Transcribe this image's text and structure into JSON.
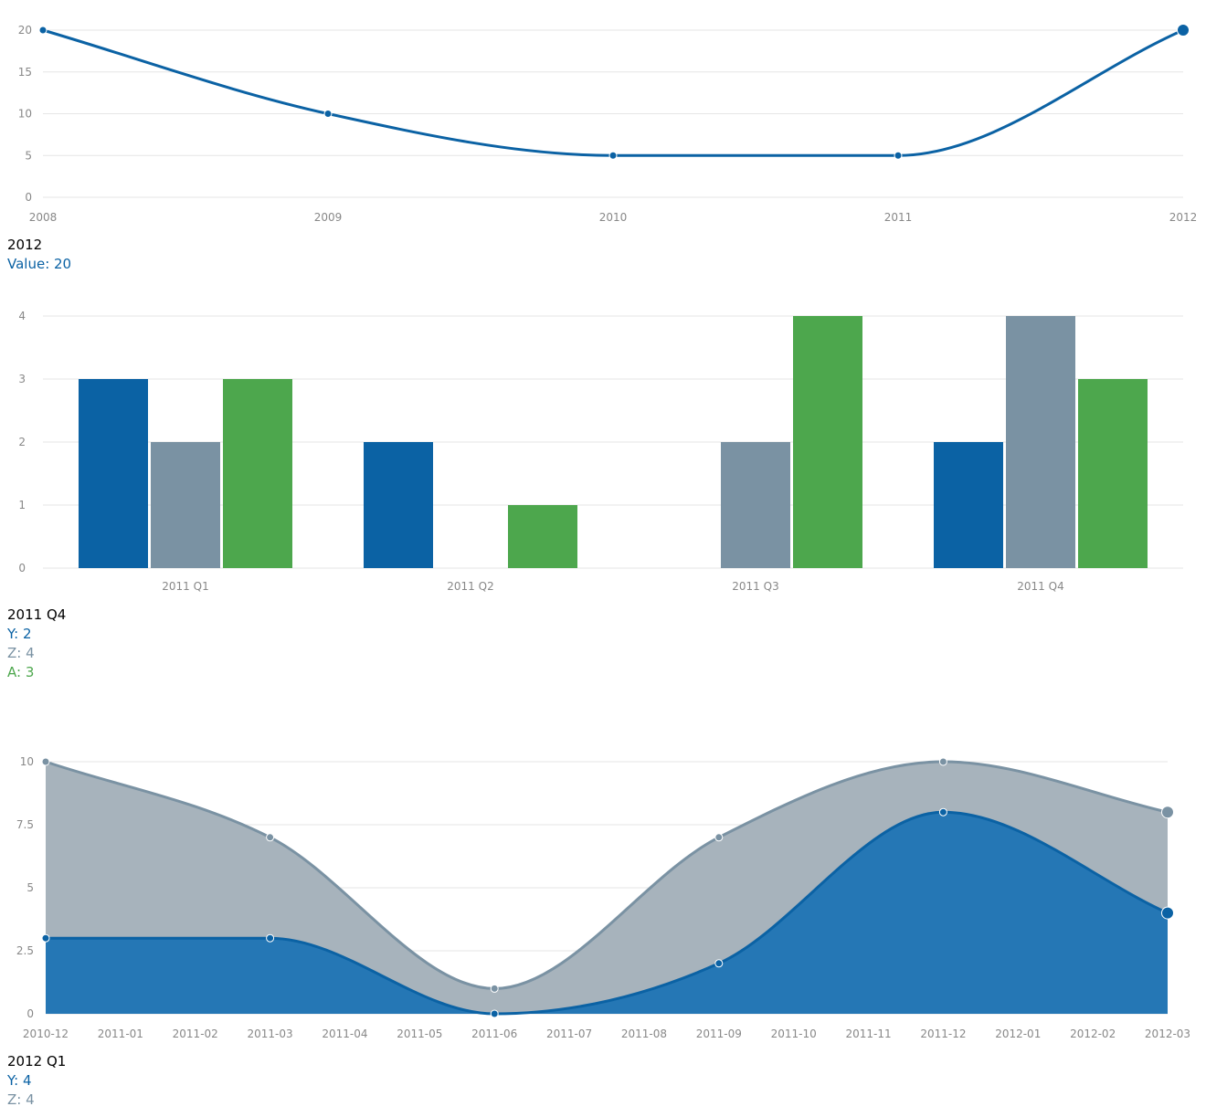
{
  "colors": {
    "grid": "#e6e6e6",
    "axis_text": "#888888",
    "y_series": "#0b62a4",
    "z_series": "#7a92a3",
    "a_series": "#4da74d",
    "area_y_fill": "#2577b5",
    "area_z_fill": "#a7b3bc"
  },
  "chart_data": [
    {
      "type": "line",
      "x": [
        "2008",
        "2009",
        "2010",
        "2011",
        "2012"
      ],
      "series": [
        {
          "name": "Value",
          "values": [
            20,
            10,
            5,
            5,
            20
          ]
        }
      ],
      "ylim": [
        0,
        20
      ],
      "yticks": [
        "0",
        "5",
        "10",
        "15",
        "20"
      ],
      "grid": true,
      "highlighted_index": 4
    },
    {
      "type": "bar",
      "categories": [
        "2011 Q1",
        "2011 Q2",
        "2011 Q3",
        "2011 Q4"
      ],
      "series": [
        {
          "name": "Y",
          "values": [
            3,
            2,
            0,
            2
          ]
        },
        {
          "name": "Z",
          "values": [
            2,
            0,
            2,
            4
          ]
        },
        {
          "name": "A",
          "values": [
            3,
            1,
            4,
            3
          ]
        }
      ],
      "ylim": [
        0,
        4
      ],
      "yticks": [
        "0",
        "1",
        "2",
        "3",
        "4"
      ],
      "grid": true
    },
    {
      "type": "area",
      "x": [
        "2010-12",
        "2011-03",
        "2011-06",
        "2011-09",
        "2011-12",
        "2012-03"
      ],
      "x_tick_labels": [
        "2010-12",
        "2011-01",
        "2011-02",
        "2011-03",
        "2011-04",
        "2011-05",
        "2011-06",
        "2011-07",
        "2011-08",
        "2011-09",
        "2011-10",
        "2011-11",
        "2011-12",
        "2012-01",
        "2012-02",
        "2012-03"
      ],
      "series": [
        {
          "name": "Y",
          "values": [
            3,
            3,
            0,
            2,
            8,
            4
          ]
        },
        {
          "name": "Z",
          "values": [
            7,
            4,
            1,
            5,
            2,
            4
          ]
        }
      ],
      "stacked": true,
      "ylim": [
        0,
        10
      ],
      "yticks": [
        "0",
        "2.5",
        "5",
        "7.5",
        "10"
      ],
      "grid": true,
      "highlighted_index": 5
    }
  ],
  "hovers": {
    "line": {
      "title": "2012",
      "rows": [
        {
          "text": "Value: 20",
          "color": "#0b62a4"
        }
      ]
    },
    "bar": {
      "title": "2011 Q4",
      "rows": [
        {
          "text": "Y: 2",
          "color": "#0b62a4"
        },
        {
          "text": "Z: 4",
          "color": "#7a92a3"
        },
        {
          "text": "A: 3",
          "color": "#4da74d"
        }
      ]
    },
    "area": {
      "title": "2012 Q1",
      "rows": [
        {
          "text": "Y: 4",
          "color": "#0b62a4"
        },
        {
          "text": "Z: 4",
          "color": "#7a92a3"
        }
      ]
    }
  }
}
